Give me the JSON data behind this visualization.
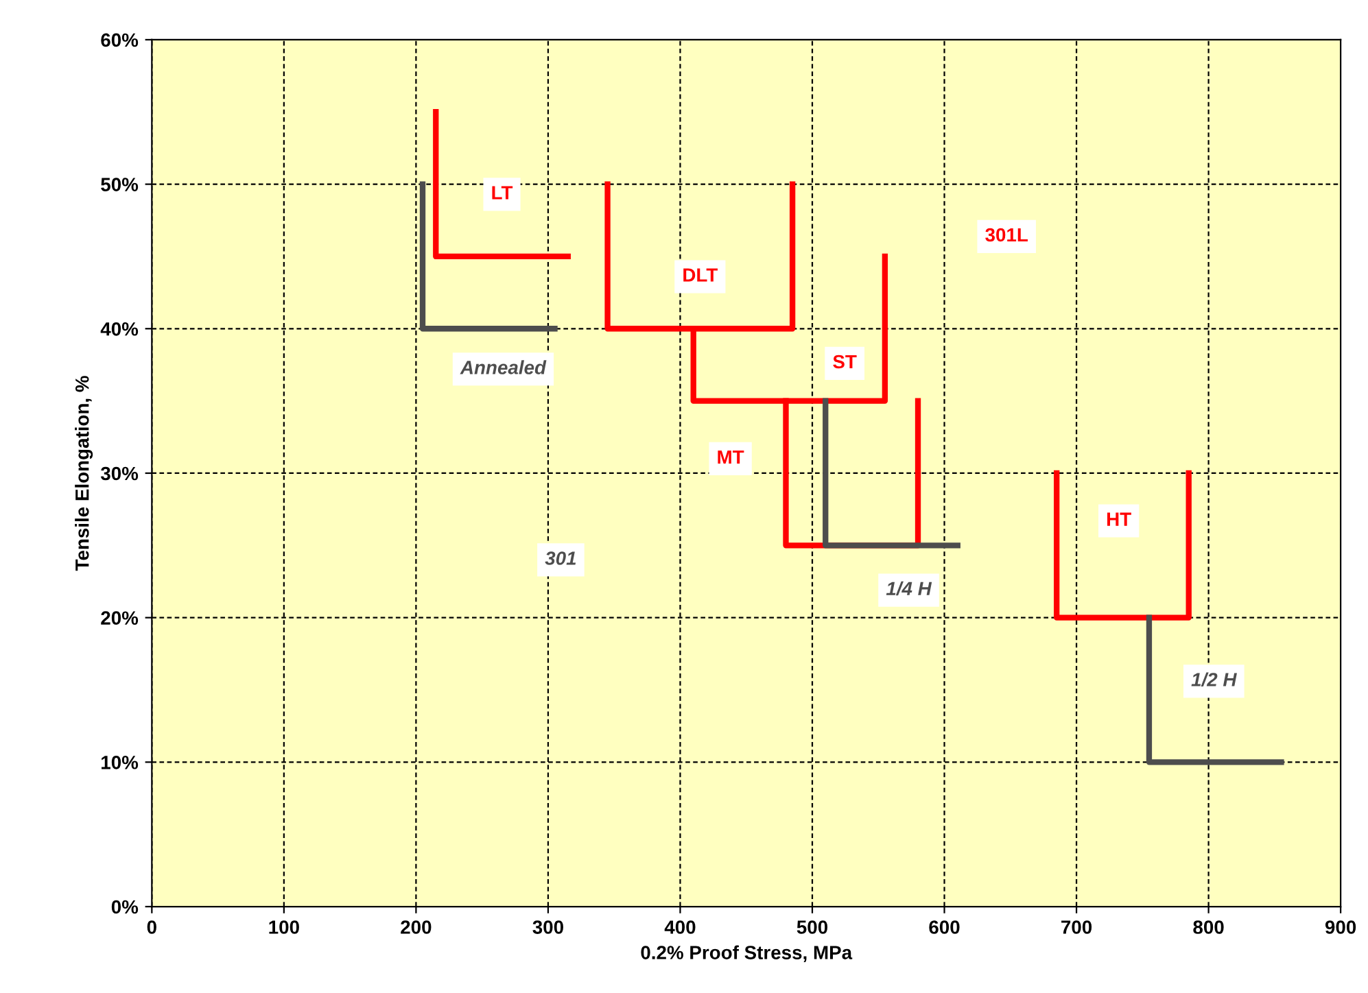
{
  "chart_data": {
    "type": "line",
    "xlabel": "0.2% Proof Stress, MPa",
    "ylabel": "Tensile Elongation, %",
    "xlim": [
      0,
      900
    ],
    "xticks": [
      0,
      100,
      200,
      300,
      400,
      500,
      600,
      700,
      800,
      900
    ],
    "ylim": [
      0,
      60
    ],
    "yticks": [
      {
        "value": 0,
        "label": "0%"
      },
      {
        "value": 10,
        "label": "10%"
      },
      {
        "value": 20,
        "label": "20%"
      },
      {
        "value": 30,
        "label": "30%"
      },
      {
        "value": 40,
        "label": "40%"
      },
      {
        "value": 50,
        "label": "50%"
      },
      {
        "value": 60,
        "label": "60%"
      }
    ],
    "grid": true,
    "marker": "none",
    "line_style": "solid",
    "legend": false,
    "series": [
      {
        "name": "Annealed",
        "color": "#4d4d4d",
        "x": [
          205,
          205,
          305
        ],
        "values": [
          50,
          40,
          40
        ]
      },
      {
        "name": "LT",
        "color": "#ff0000",
        "x": [
          215,
          215,
          315
        ],
        "values": [
          55,
          45,
          45
        ]
      },
      {
        "name": "DLT",
        "color": "#ff0000",
        "x": [
          345,
          345,
          485,
          485
        ],
        "values": [
          50,
          40,
          40,
          50
        ]
      },
      {
        "name": "ST",
        "color": "#ff0000",
        "x": [
          410,
          410,
          555,
          555
        ],
        "values": [
          40,
          35,
          35,
          45
        ]
      },
      {
        "name": "MT",
        "color": "#ff0000",
        "x": [
          480,
          480,
          580,
          580
        ],
        "values": [
          35,
          25,
          25,
          35
        ]
      },
      {
        "name": "1/4 H",
        "color": "#4d4d4d",
        "x": [
          510,
          510,
          610
        ],
        "values": [
          35,
          25,
          25
        ]
      },
      {
        "name": "HT",
        "color": "#ff0000",
        "x": [
          685,
          685,
          785,
          785
        ],
        "values": [
          30,
          20,
          20,
          30
        ]
      },
      {
        "name": "1/2 H",
        "color": "#4d4d4d",
        "x": [
          755,
          755,
          855
        ],
        "values": [
          20,
          10,
          10
        ]
      }
    ],
    "annotations": [
      "301L",
      "301"
    ]
  }
}
